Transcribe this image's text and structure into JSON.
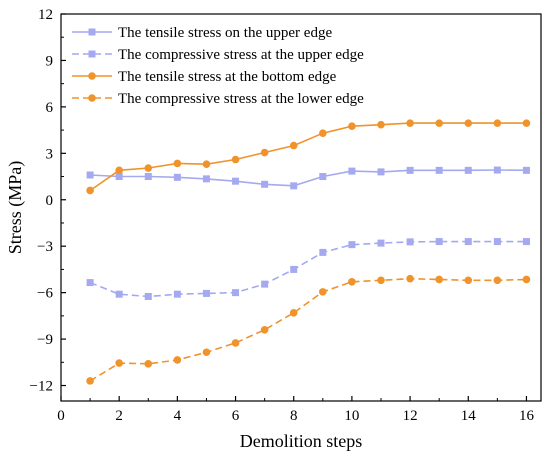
{
  "chart_data": {
    "type": "line",
    "xlabel": "Demolition steps",
    "ylabel": "Stress (MPa)",
    "xlim": [
      0,
      16.5
    ],
    "ylim": [
      -13,
      12
    ],
    "xticks": [
      0,
      2,
      4,
      6,
      8,
      10,
      12,
      14,
      16
    ],
    "yticks": [
      12,
      9,
      6,
      3,
      0,
      -3,
      -6,
      -9,
      -12
    ],
    "grid": false,
    "legend_position": "top-left",
    "x": [
      1,
      2,
      3,
      4,
      5,
      6,
      7,
      8,
      9,
      10,
      11,
      12,
      13,
      14,
      15,
      16
    ],
    "series": [
      {
        "name": "The tensile stress on the upper edge",
        "color": "#a4a9f0",
        "line_style": "solid",
        "marker": "square",
        "values": [
          1.6,
          1.5,
          1.5,
          1.45,
          1.35,
          1.2,
          1.0,
          0.9,
          1.5,
          1.85,
          1.8,
          1.9,
          1.9,
          1.9,
          1.92,
          1.9
        ]
      },
      {
        "name": "The compressive stress at the upper edge",
        "color": "#a4a9f0",
        "line_style": "dashed",
        "marker": "square",
        "values": [
          -5.35,
          -6.1,
          -6.25,
          -6.1,
          -6.05,
          -6.0,
          -5.45,
          -4.5,
          -3.4,
          -2.9,
          -2.8,
          -2.72,
          -2.7,
          -2.7,
          -2.7,
          -2.7
        ]
      },
      {
        "name": "The tensile stress at the bottom edge",
        "color": "#f0932b",
        "line_style": "solid",
        "marker": "circle",
        "values": [
          0.6,
          1.9,
          2.05,
          2.35,
          2.3,
          2.6,
          3.05,
          3.5,
          4.3,
          4.75,
          4.85,
          4.95,
          4.95,
          4.95,
          4.95,
          4.95
        ]
      },
      {
        "name": "The compressive stress at the lower edge",
        "color": "#f0932b",
        "line_style": "dashed",
        "marker": "circle",
        "values": [
          -11.7,
          -10.55,
          -10.6,
          -10.35,
          -9.85,
          -9.25,
          -8.4,
          -7.3,
          -5.95,
          -5.3,
          -5.2,
          -5.1,
          -5.15,
          -5.2,
          -5.2,
          -5.15
        ]
      }
    ]
  }
}
